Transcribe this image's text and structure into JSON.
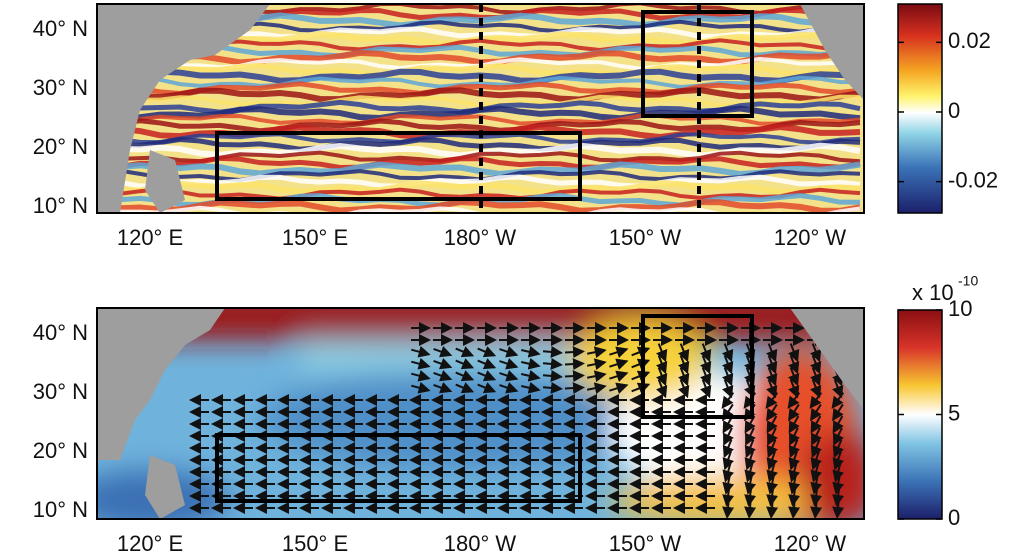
{
  "panels": [
    {
      "lat_labels": [
        "40° N",
        "30° N",
        "20° N",
        "10° N"
      ],
      "lon_labels": [
        "120° E",
        "150° E",
        "180° W",
        "150° W",
        "120° W"
      ],
      "colorbar": {
        "lim": [
          -0.029,
          0.031
        ],
        "ticks": [
          0.02,
          0,
          -0.02
        ]
      }
    },
    {
      "lat_labels": [
        "40° N",
        "30° N",
        "20° N",
        "10° N"
      ],
      "lon_labels": [
        "120° E",
        "150° E",
        "180° W",
        "150° W",
        "120° W"
      ],
      "colorbar": {
        "lim": [
          0,
          10
        ],
        "ticks": [
          10,
          5,
          0
        ],
        "scale_base": "x 10",
        "scale_exponent": "-10"
      }
    }
  ]
}
